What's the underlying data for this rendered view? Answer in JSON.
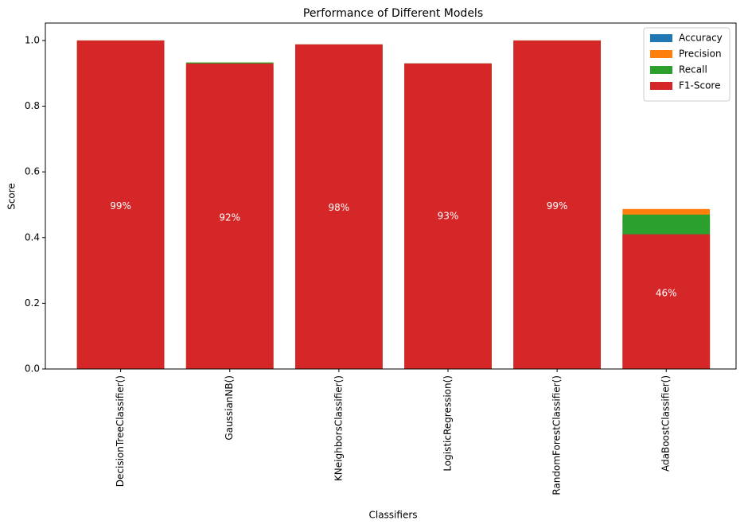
{
  "chart_data": {
    "type": "bar",
    "title": "Performance of Different Models",
    "x_label": "Classifiers",
    "y_label": "Score",
    "categories": [
      "DecisionTreeClassifier()",
      "GaussianNB()",
      "KNeighborsClassifier()",
      "LogisticRegression()",
      "RandomForestClassifier()",
      "AdaBoostClassifier()"
    ],
    "series": [
      {
        "name": "Accuracy",
        "color": "#1f77b4",
        "values": [
          0.99,
          0.92,
          0.98,
          0.93,
          0.99,
          0.46
        ],
        "value_labels": [
          "99%",
          "92%",
          "98%",
          "93%",
          "99%",
          "46%"
        ]
      },
      {
        "name": "Precision",
        "color": "#ff7f0e",
        "values": [
          1.0,
          0.933,
          0.988,
          0.93,
          1.0,
          0.487
        ]
      },
      {
        "name": "Recall",
        "color": "#2ca02c",
        "values": [
          1.0,
          0.933,
          0.988,
          0.93,
          1.0,
          0.47
        ]
      },
      {
        "name": "F1-Score",
        "color": "#d62728",
        "values": [
          1.0,
          0.93,
          0.988,
          0.93,
          1.0,
          0.41
        ]
      }
    ],
    "ylim": [
      0,
      1.053
    ],
    "yticks": [
      {
        "value": 0,
        "label": "0.0"
      },
      {
        "value": 0.2,
        "label": "0.2"
      },
      {
        "value": 0.4,
        "label": "0.4"
      },
      {
        "value": 0.6,
        "label": "0.6"
      },
      {
        "value": 0.8,
        "label": "0.8"
      },
      {
        "value": 1.0,
        "label": "1.0"
      }
    ],
    "legend": "upper right",
    "grid": false
  }
}
